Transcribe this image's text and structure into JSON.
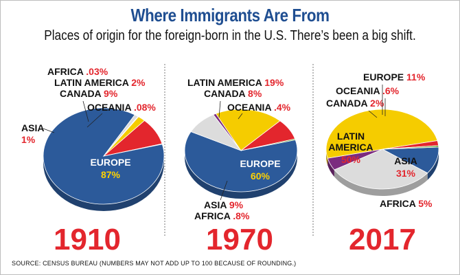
{
  "title": "Where Immigrants Are From",
  "subtitle": "Places of origin for the foreign-born in the U.S. There’s been a big shift.",
  "source": "SOURCE: CENSUS BUREAU (NUMBERS MAY NOT ADD UP TO 100 BECAUSE OF ROUNDING.)",
  "colors": {
    "europe": "#2c5a9a",
    "latin_america": "#f5cc00",
    "canada": "#e3262d",
    "oceania": "#5aa02c",
    "asia": "#dcdcdc",
    "africa": "#7b2b7f",
    "label_value": "#e3262d",
    "title": "#1f4e91"
  },
  "chart_data": [
    {
      "type": "pie",
      "year": "1910",
      "slices": [
        {
          "name": "EUROPE",
          "label": "87%",
          "value": 87
        },
        {
          "name": "ASIA",
          "label": "1%",
          "value": 1
        },
        {
          "name": "AFRICA",
          "label": ".03%",
          "value": 0.03
        },
        {
          "name": "LATIN AMERICA",
          "label": "2%",
          "value": 2
        },
        {
          "name": "CANADA",
          "label": "9%",
          "value": 9
        },
        {
          "name": "OCEANIA",
          "label": ".08%",
          "value": 0.08
        }
      ]
    },
    {
      "type": "pie",
      "year": "1970",
      "slices": [
        {
          "name": "EUROPE",
          "label": "60%",
          "value": 60
        },
        {
          "name": "ASIA",
          "label": "9%",
          "value": 9
        },
        {
          "name": "AFRICA",
          "label": ".8%",
          "value": 0.8
        },
        {
          "name": "LATIN AMERICA",
          "label": "19%",
          "value": 19
        },
        {
          "name": "CANADA",
          "label": "8%",
          "value": 8
        },
        {
          "name": "OCEANIA",
          "label": ".4%",
          "value": 0.4
        }
      ]
    },
    {
      "type": "pie",
      "year": "2017",
      "slices": [
        {
          "name": "EUROPE",
          "label": "11%",
          "value": 11
        },
        {
          "name": "ASIA",
          "label": "31%",
          "value": 31
        },
        {
          "name": "AFRICA",
          "label": "5%",
          "value": 5
        },
        {
          "name": "LATIN AMERICA",
          "label": "50%",
          "value": 50
        },
        {
          "name": "CANADA",
          "label": "2%",
          "value": 2
        },
        {
          "name": "OCEANIA",
          "label": ".6%",
          "value": 0.6
        }
      ]
    }
  ]
}
